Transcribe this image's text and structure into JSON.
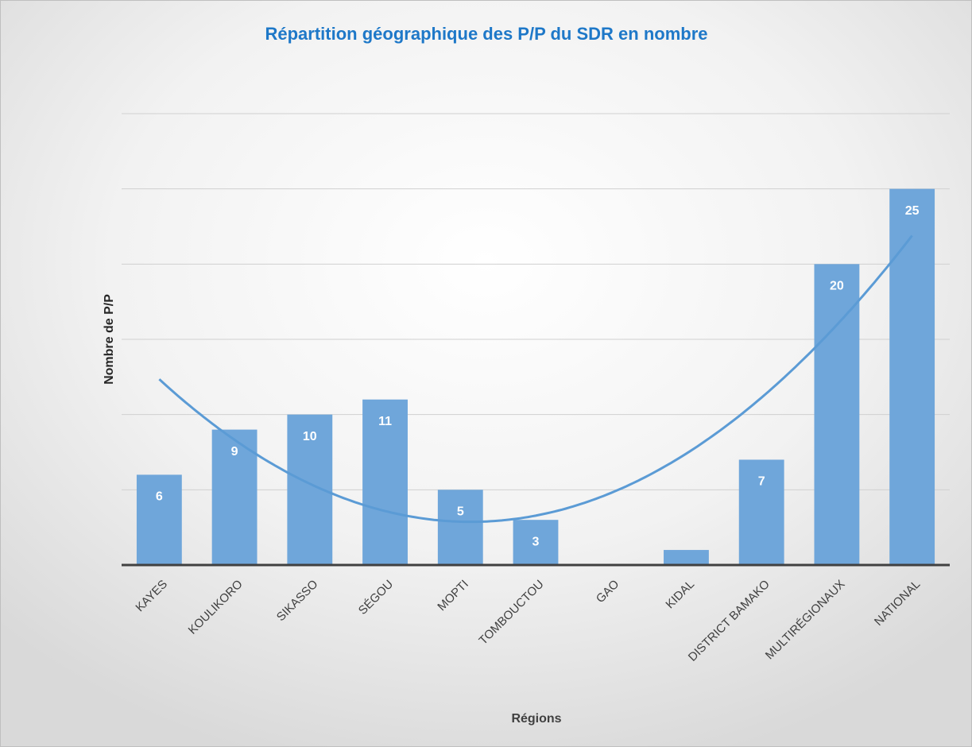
{
  "chart_data": {
    "type": "bar",
    "title": "Répartition géographique des P/P du SDR en nombre",
    "x_label": "Régions",
    "y_label": "Nombre de P/P",
    "categories": [
      "KAYES",
      "KOULIKORO",
      "SIKASSO",
      "SÉGOU",
      "MOPTI",
      "TOMBOUCTOU",
      "GAO",
      "KIDAL",
      "DISTRICT BAMAKO",
      "MULTIRÉGIONAUX",
      "NATIONAL"
    ],
    "values": [
      6,
      9,
      10,
      11,
      5,
      3,
      0,
      1,
      7,
      20,
      25
    ],
    "value_labels": [
      "6",
      "9",
      "10",
      "11",
      "5",
      "3",
      null,
      null,
      "7",
      "20",
      "25"
    ],
    "color": "#6fa6da",
    "trendline": {
      "type": "polynomial",
      "order": 2,
      "color": "#5b9bd5"
    },
    "ylim": [
      0,
      30
    ],
    "yticks": [
      0,
      5,
      10,
      15,
      20,
      25,
      30
    ],
    "grid": true
  }
}
